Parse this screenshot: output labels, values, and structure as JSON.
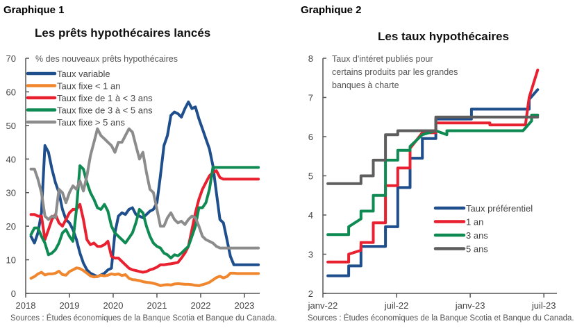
{
  "chart_data": [
    {
      "type": "line",
      "label": "Graphique 1",
      "title": "Les prêts hypothécaires lancés",
      "annotation": "% des nouveaux prêts hypothécaires",
      "xlabel": "",
      "ylabel": "",
      "xlim": [
        2018,
        2023.35
      ],
      "ylim": [
        0,
        70
      ],
      "yticks": [
        0,
        10,
        20,
        30,
        40,
        50,
        60,
        70
      ],
      "xticks": [
        2018,
        2019,
        2020,
        2021,
        2022,
        2023
      ],
      "xtick_labels": [
        "2018",
        "2019",
        "2020",
        "2021",
        "2022",
        "2023"
      ],
      "grid": false,
      "legend": "top-left",
      "source": "Sources : Études économiques de la Banque Scotia et Banque du Canada.",
      "series": [
        {
          "name": "Taux variable",
          "color": "#1f4e8c",
          "x": [
            2018.12,
            2018.2,
            2018.28,
            2018.36,
            2018.44,
            2018.52,
            2018.6,
            2018.68,
            2018.76,
            2018.84,
            2018.92,
            2019.0,
            2019.08,
            2019.16,
            2019.24,
            2019.32,
            2019.4,
            2019.48,
            2019.56,
            2019.64,
            2019.72,
            2019.8,
            2019.88,
            2019.96,
            2020.04,
            2020.12,
            2020.2,
            2020.28,
            2020.36,
            2020.44,
            2020.52,
            2020.6,
            2020.68,
            2020.76,
            2020.84,
            2020.92,
            2021.0,
            2021.08,
            2021.16,
            2021.24,
            2021.32,
            2021.4,
            2021.48,
            2021.56,
            2021.64,
            2021.72,
            2021.8,
            2021.88,
            2021.96,
            2022.04,
            2022.12,
            2022.2,
            2022.28,
            2022.36,
            2022.44,
            2022.52,
            2022.6,
            2022.68,
            2022.76,
            2022.84,
            2022.92,
            2023.0,
            2023.08,
            2023.16,
            2023.24,
            2023.32
          ],
          "y": [
            17,
            15,
            18,
            24,
            44,
            42,
            37,
            33,
            30,
            25,
            22,
            21,
            19,
            16,
            12,
            9,
            7,
            6,
            5.5,
            5,
            5.5,
            6,
            7,
            7.5,
            18,
            23,
            24,
            23.5,
            25,
            25.5,
            23.5,
            23,
            22.5,
            23.5,
            24.5,
            25,
            27,
            35,
            44,
            47,
            53,
            54,
            53.5,
            52.5,
            55,
            57,
            55,
            55.5,
            52,
            49,
            46,
            43,
            38,
            30,
            22,
            21,
            16,
            11,
            8.5,
            8.5,
            8.5,
            8.5,
            8.5,
            8.5,
            8.5,
            8.5
          ]
        },
        {
          "name": "Taux fixe < 1 an",
          "color": "#f0872f",
          "x": [
            2018.12,
            2018.2,
            2018.28,
            2018.36,
            2018.44,
            2018.52,
            2018.6,
            2018.68,
            2018.76,
            2018.84,
            2018.92,
            2019.0,
            2019.08,
            2019.16,
            2019.24,
            2019.32,
            2019.4,
            2019.48,
            2019.56,
            2019.64,
            2019.72,
            2019.8,
            2019.88,
            2019.96,
            2020.04,
            2020.12,
            2020.2,
            2020.28,
            2020.36,
            2020.44,
            2020.52,
            2020.6,
            2020.68,
            2020.76,
            2020.84,
            2020.92,
            2021.0,
            2021.08,
            2021.16,
            2021.24,
            2021.32,
            2021.4,
            2021.48,
            2021.56,
            2021.64,
            2021.72,
            2021.8,
            2021.88,
            2021.96,
            2022.04,
            2022.12,
            2022.2,
            2022.28,
            2022.36,
            2022.44,
            2022.52,
            2022.6,
            2022.68,
            2022.76,
            2022.84,
            2022.92,
            2023.0,
            2023.08,
            2023.16,
            2023.24,
            2023.32
          ],
          "y": [
            4.5,
            5,
            5.8,
            6.3,
            5.5,
            5.8,
            5.8,
            6,
            6.6,
            5.6,
            5.4,
            6.5,
            7,
            7.6,
            7.4,
            6.8,
            6,
            5.2,
            4.9,
            5,
            5.4,
            5.2,
            5.4,
            5.8,
            5.6,
            5.8,
            5.3,
            5.6,
            4.5,
            4.1,
            4,
            3.8,
            3.5,
            3.3,
            3.2,
            3.0,
            2.7,
            2.3,
            2.5,
            2.6,
            2.5,
            2.8,
            2.9,
            2.8,
            2.7,
            2.7,
            2.6,
            2.4,
            2.3,
            2.6,
            2.9,
            3.3,
            4,
            4.7,
            5.1,
            4.6,
            5,
            6,
            6,
            5.9,
            5.9,
            5.9,
            5.9,
            5.9,
            5.9,
            5.9
          ]
        },
        {
          "name": "Taux fixe de 1 à < 3 ans",
          "color": "#e8202f",
          "x": [
            2018.12,
            2018.2,
            2018.28,
            2018.36,
            2018.44,
            2018.52,
            2018.6,
            2018.68,
            2018.76,
            2018.84,
            2018.92,
            2019.0,
            2019.08,
            2019.16,
            2019.24,
            2019.32,
            2019.4,
            2019.48,
            2019.56,
            2019.64,
            2019.72,
            2019.8,
            2019.88,
            2019.96,
            2020.04,
            2020.12,
            2020.2,
            2020.28,
            2020.36,
            2020.44,
            2020.52,
            2020.6,
            2020.68,
            2020.76,
            2020.84,
            2020.92,
            2021.0,
            2021.08,
            2021.16,
            2021.24,
            2021.32,
            2021.4,
            2021.48,
            2021.56,
            2021.64,
            2021.72,
            2021.8,
            2021.88,
            2021.96,
            2022.04,
            2022.12,
            2022.2,
            2022.28,
            2022.36,
            2022.44,
            2022.52,
            2022.6,
            2022.68,
            2022.76,
            2022.84,
            2022.92,
            2023.0,
            2023.08,
            2023.16,
            2023.24,
            2023.32
          ],
          "y": [
            23.5,
            23.5,
            23,
            23,
            16,
            19,
            22,
            23.5,
            21,
            20,
            22,
            24,
            25,
            25,
            26.5,
            22,
            16,
            14.5,
            15,
            14,
            14,
            14.5,
            15.5,
            11,
            10.5,
            10.5,
            9.5,
            8.5,
            7.5,
            7,
            6.8,
            6.5,
            6.3,
            6.5,
            7,
            7.3,
            7.8,
            8.5,
            8.5,
            8.7,
            8.8,
            9,
            9.2,
            10.5,
            12,
            14,
            19,
            24,
            28,
            31,
            33,
            35,
            36,
            36.5,
            34.5,
            34,
            34,
            34,
            34,
            34,
            34,
            34,
            34,
            34,
            34,
            34
          ]
        },
        {
          "name": "Taux fixe de 3 à < 5 ans",
          "color": "#0e8a52",
          "x": [
            2018.12,
            2018.2,
            2018.28,
            2018.36,
            2018.44,
            2018.52,
            2018.6,
            2018.68,
            2018.76,
            2018.84,
            2018.92,
            2019.0,
            2019.08,
            2019.16,
            2019.24,
            2019.32,
            2019.4,
            2019.48,
            2019.56,
            2019.64,
            2019.72,
            2019.8,
            2019.88,
            2019.96,
            2020.04,
            2020.12,
            2020.2,
            2020.28,
            2020.36,
            2020.44,
            2020.52,
            2020.6,
            2020.68,
            2020.76,
            2020.84,
            2020.92,
            2021.0,
            2021.08,
            2021.16,
            2021.24,
            2021.32,
            2021.4,
            2021.48,
            2021.56,
            2021.64,
            2021.72,
            2021.8,
            2021.88,
            2021.96,
            2022.04,
            2022.12,
            2022.2,
            2022.28,
            2022.36,
            2022.44,
            2022.52,
            2022.6,
            2022.68,
            2022.76,
            2022.84,
            2022.92,
            2023.0,
            2023.08,
            2023.16,
            2023.24,
            2023.32
          ],
          "y": [
            17.5,
            19.5,
            19.5,
            17,
            15,
            11.5,
            12,
            13,
            15,
            18,
            19,
            17,
            15.5,
            25,
            38,
            37,
            33,
            30,
            28,
            25.5,
            25,
            26.5,
            24.5,
            20,
            18,
            17,
            16,
            15,
            16.5,
            18,
            21,
            25,
            24,
            20,
            17,
            15,
            14,
            13.5,
            12,
            11.5,
            10.5,
            11.5,
            11.2,
            12,
            13,
            14,
            17,
            20,
            25.5,
            25.5,
            27,
            31,
            37.5,
            37.5,
            37.5,
            37.5,
            37.5,
            37.5,
            37.5,
            37.5,
            37.5,
            37.5,
            37.5,
            37.5,
            37.5,
            37.5
          ]
        },
        {
          "name": "Taux fixe  > 5 ans",
          "color": "#8c8c8c",
          "x": [
            2018.12,
            2018.2,
            2018.28,
            2018.36,
            2018.44,
            2018.52,
            2018.6,
            2018.68,
            2018.76,
            2018.84,
            2018.92,
            2019.0,
            2019.08,
            2019.16,
            2019.24,
            2019.32,
            2019.4,
            2019.48,
            2019.56,
            2019.64,
            2019.72,
            2019.8,
            2019.88,
            2019.96,
            2020.04,
            2020.12,
            2020.2,
            2020.28,
            2020.36,
            2020.44,
            2020.52,
            2020.6,
            2020.68,
            2020.76,
            2020.84,
            2020.92,
            2021.0,
            2021.08,
            2021.16,
            2021.24,
            2021.32,
            2021.4,
            2021.48,
            2021.56,
            2021.64,
            2021.72,
            2021.8,
            2021.88,
            2021.96,
            2022.04,
            2022.12,
            2022.2,
            2022.28,
            2022.36,
            2022.44,
            2022.52,
            2022.6,
            2022.68,
            2022.76,
            2022.84,
            2022.92,
            2023.0,
            2023.08,
            2023.16,
            2023.24,
            2023.32
          ],
          "y": [
            37,
            37,
            34,
            30,
            23,
            22,
            23,
            22.5,
            31,
            30,
            27,
            30,
            32,
            31,
            33.5,
            30.5,
            35,
            41,
            45,
            49,
            47,
            46,
            45,
            44,
            42,
            45,
            45,
            47,
            49,
            48,
            44,
            40,
            42,
            36,
            31,
            30,
            25,
            20,
            20,
            22.5,
            24,
            22,
            21,
            21.5,
            20.5,
            22,
            23,
            22.5,
            20,
            17,
            16,
            15.5,
            15,
            14,
            13.5,
            13.5,
            13.5,
            13.5,
            13.5,
            13.5,
            13.5,
            13.5,
            13.5,
            13.5,
            13.5,
            13.5
          ]
        }
      ]
    },
    {
      "type": "line",
      "label": "Graphique 2",
      "title": "Les taux hypothécaires",
      "annotation": "Taux d'intéret publiés pour certains produits par les grandes banques à charte",
      "annotation_lines": [
        "Taux d'intéret publiés pour",
        "certains produits par les grandes",
        "banques à charte"
      ],
      "xlabel": "",
      "ylabel": "",
      "x_unit": "months since janv-22",
      "xlim": [
        0,
        18.5
      ],
      "ylim": [
        2,
        8
      ],
      "yticks": [
        2,
        3,
        4,
        5,
        6,
        7,
        8
      ],
      "xticks": [
        0,
        6,
        12,
        18
      ],
      "xtick_labels": [
        "janv-22",
        "juil-22",
        "janv-23",
        "juil-23"
      ],
      "grid": false,
      "legend": "center-right",
      "source": "Sources : Études économiques de la Banque Scotia et Banque du Canada.",
      "series": [
        {
          "name": "Taux préférentiel",
          "color": "#1f4e8c",
          "x": [
            0.4,
            2.1,
            2.1,
            3.1,
            3.1,
            5.1,
            5.1,
            6.1,
            6.1,
            7.1,
            7.1,
            8.1,
            8.1,
            9.2,
            9.2,
            10.1,
            10.1,
            11.1,
            11.1,
            12.1,
            12.1,
            13.1,
            13.6,
            14.1,
            16.8,
            16.8,
            17.5
          ],
          "y": [
            2.45,
            2.45,
            2.7,
            2.7,
            3.2,
            3.2,
            3.7,
            3.7,
            4.7,
            4.7,
            5.45,
            5.45,
            5.95,
            5.95,
            6.45,
            6.45,
            6.45,
            6.45,
            6.45,
            6.45,
            6.7,
            6.7,
            6.7,
            6.7,
            6.7,
            6.95,
            7.2
          ]
        },
        {
          "name": "1 an",
          "color": "#e8202f",
          "x": [
            0.4,
            2.1,
            2.1,
            3.1,
            3.1,
            4.1,
            4.1,
            5.1,
            5.1,
            6.1,
            6.1,
            7.1,
            7.1,
            8.1,
            9.2,
            9.2,
            11.1,
            11.1,
            13.6,
            13.6,
            16.5,
            16.8,
            17.0,
            17.5
          ],
          "y": [
            2.8,
            2.8,
            3.0,
            3.1,
            3.3,
            3.3,
            3.8,
            3.8,
            4.75,
            4.75,
            5.2,
            5.2,
            5.7,
            6.1,
            6.1,
            6.35,
            6.35,
            6.35,
            6.35,
            6.3,
            6.3,
            7.0,
            7.2,
            7.7
          ]
        },
        {
          "name": "3 ans",
          "color": "#0e8a52",
          "x": [
            0.4,
            2.1,
            2.1,
            3.1,
            3.1,
            4.1,
            4.1,
            5.1,
            5.1,
            6.1,
            6.1,
            7.1,
            7.1,
            8.1,
            9.2,
            10.1,
            10.1,
            16.3,
            17.0,
            17.0,
            17.5
          ],
          "y": [
            3.5,
            3.5,
            3.7,
            3.9,
            4.1,
            4.1,
            4.5,
            4.5,
            5.4,
            5.4,
            5.65,
            5.65,
            5.75,
            6.05,
            6.15,
            6.05,
            6.15,
            6.15,
            6.4,
            6.55,
            6.55
          ]
        },
        {
          "name": "5 ans",
          "color": "#5e5e5e",
          "x": [
            0.4,
            3.1,
            3.1,
            4.1,
            4.1,
            5.1,
            5.1,
            6.1,
            6.1,
            9.2,
            9.2,
            17.5
          ],
          "y": [
            4.8,
            4.8,
            5.0,
            5.0,
            5.4,
            5.4,
            6.05,
            6.05,
            6.15,
            6.15,
            6.5,
            6.5
          ]
        }
      ]
    }
  ]
}
